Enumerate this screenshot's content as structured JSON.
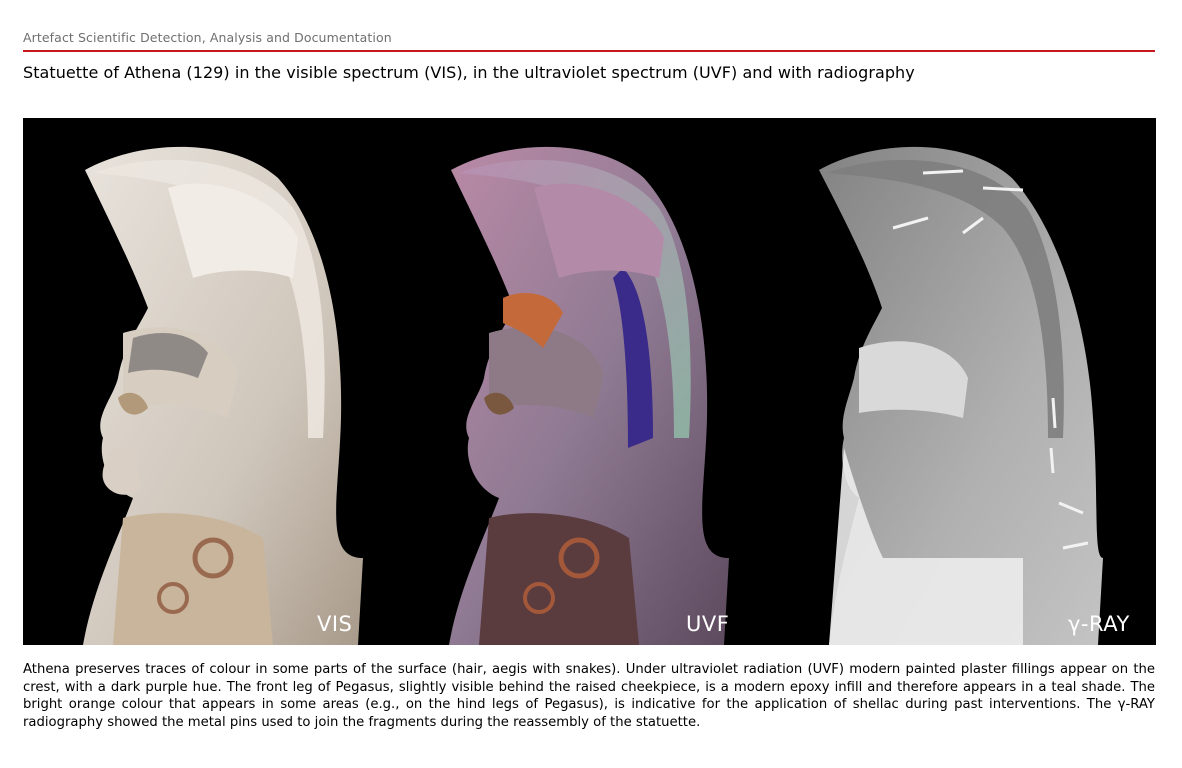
{
  "header": {
    "section_title": "Artefact Scientific Detection, Analysis and Documentation",
    "accent_color": "#c8161d"
  },
  "figure": {
    "title": "Statuette of Athena (129) in the visible spectrum (VIS), in the ultraviolet spectrum (UVF) and with radiography",
    "panels": [
      {
        "label": "VIS"
      },
      {
        "label": "UVF"
      },
      {
        "label": "γ-RAY"
      }
    ]
  },
  "caption": {
    "text": "Athena preserves traces of colour in some parts of the surface (hair, aegis with snakes). Under ultraviolet radiation (UVF) modern painted plaster fillings appear on the crest, with a dark purple hue. The front leg of Pegasus, slightly visible behind the raised cheekpiece, is a modern epoxy infill and therefore appears in a teal shade. The bright orange colour that appears in some areas (e.g., on the hind legs of Pegasus), is indicative for the application of shellac during past interventions. The γ-RAY radiography showed the metal pins used to join the fragments during the reassembly of the statuette."
  }
}
